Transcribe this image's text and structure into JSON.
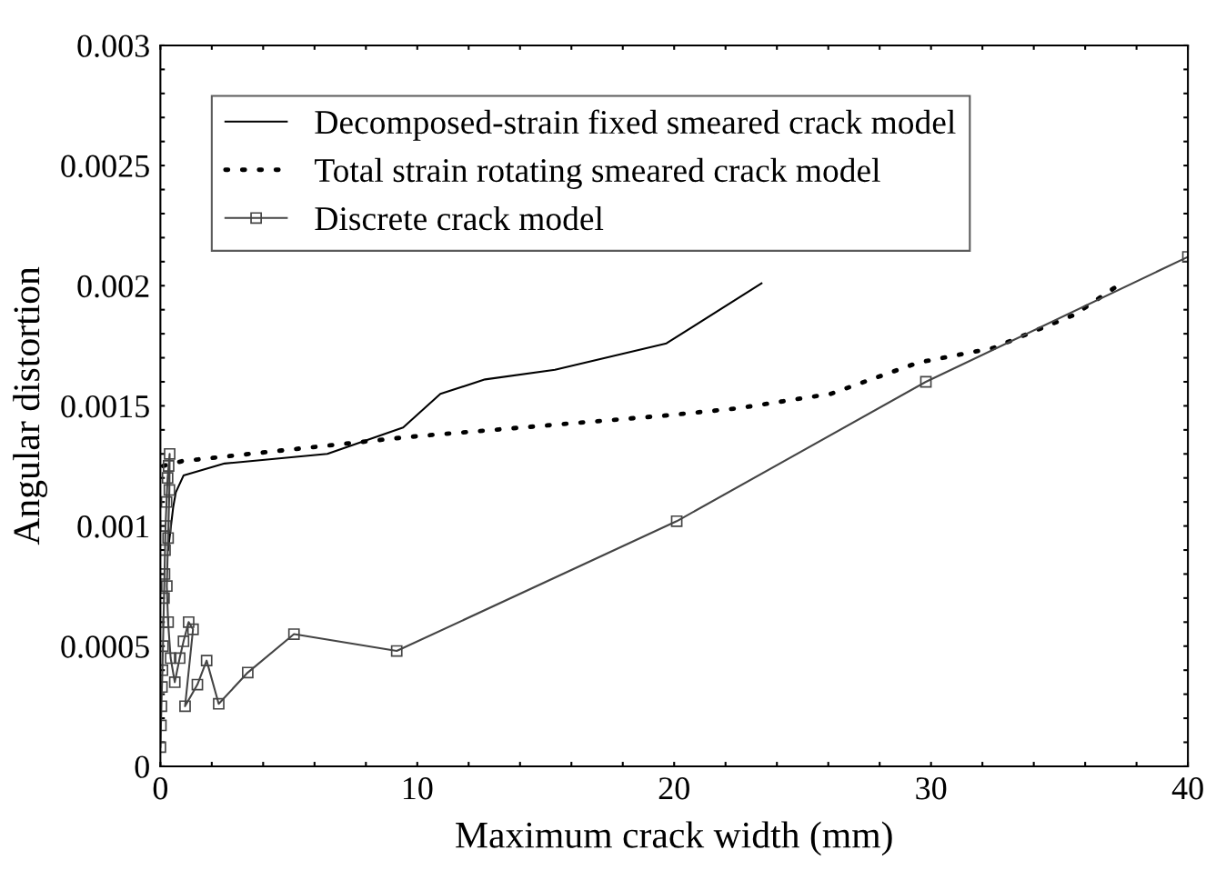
{
  "chart_data": {
    "type": "line",
    "xlabel": "Maximum crack width (mm)",
    "ylabel": "Angular distortion",
    "xlim": [
      0,
      40
    ],
    "ylim": [
      0,
      0.003
    ],
    "xticks": [
      0,
      {
        "value": 2,
        "label": null
      },
      {
        "value": 4,
        "label": null
      },
      {
        "value": 6,
        "label": null
      },
      {
        "value": 8,
        "label": null
      },
      10,
      {
        "value": 12,
        "label": null
      },
      {
        "value": 14,
        "label": null
      },
      {
        "value": 16,
        "label": null
      },
      {
        "value": 18,
        "label": null
      },
      20,
      {
        "value": 22,
        "label": null
      },
      {
        "value": 24,
        "label": null
      },
      {
        "value": 26,
        "label": null
      },
      {
        "value": 28,
        "label": null
      },
      30,
      {
        "value": 32,
        "label": null
      },
      {
        "value": 34,
        "label": null
      },
      {
        "value": 36,
        "label": null
      },
      {
        "value": 38,
        "label": null
      },
      40
    ],
    "yticks": [
      0,
      {
        "value": 0.0001,
        "label": null
      },
      {
        "value": 0.0002,
        "label": null
      },
      {
        "value": 0.0003,
        "label": null
      },
      {
        "value": 0.0004,
        "label": null
      },
      {
        "value": 0.0005,
        "label": "0.0005"
      },
      {
        "value": 0.0006,
        "label": null
      },
      {
        "value": 0.0007,
        "label": null
      },
      {
        "value": 0.0008,
        "label": null
      },
      {
        "value": 0.0009,
        "label": null
      },
      {
        "value": 0.001,
        "label": "0.001"
      },
      {
        "value": 0.0011,
        "label": null
      },
      {
        "value": 0.0012,
        "label": null
      },
      {
        "value": 0.0013,
        "label": null
      },
      {
        "value": 0.0014,
        "label": null
      },
      {
        "value": 0.0015,
        "label": "0.0015"
      },
      {
        "value": 0.0016,
        "label": null
      },
      {
        "value": 0.0017,
        "label": null
      },
      {
        "value": 0.0018,
        "label": null
      },
      {
        "value": 0.0019,
        "label": null
      },
      {
        "value": 0.002,
        "label": "0.002"
      },
      {
        "value": 0.0021,
        "label": null
      },
      {
        "value": 0.0022,
        "label": null
      },
      {
        "value": 0.0023,
        "label": null
      },
      {
        "value": 0.0024,
        "label": null
      },
      {
        "value": 0.0025,
        "label": "0.0025"
      },
      {
        "value": 0.0026,
        "label": null
      },
      {
        "value": 0.0027,
        "label": null
      },
      {
        "value": 0.0028,
        "label": null
      },
      {
        "value": 0.0029,
        "label": null
      },
      {
        "value": 0.003,
        "label": "0.003"
      }
    ],
    "grid": false,
    "legend": "top left",
    "series": [
      {
        "name": "Decomposed-strain fixed smeared crack model",
        "color": "#000000",
        "line_style": "solid",
        "marker": "none",
        "x": [
          0.3,
          0.5,
          0.6,
          0.9,
          2.5,
          6.5,
          9.45,
          10.9,
          12.64,
          15.36,
          19.7,
          23.4
        ],
        "values": [
          0.0009,
          0.00108,
          0.00114,
          0.00121,
          0.00126,
          0.0013,
          0.00141,
          0.00155,
          0.00161,
          0.00165,
          0.00176,
          0.00201
        ]
      },
      {
        "name": "Total strain rotating smeared crack model",
        "color": "#000000",
        "line_style": "dotted",
        "marker": "none",
        "x": [
          0.1,
          0.85,
          9.6,
          19.7,
          22.5,
          26.1,
          29.5,
          32.4,
          35.6,
          37.4
        ],
        "values": [
          0.00125,
          0.00127,
          0.00137,
          0.00146,
          0.00149,
          0.00155,
          0.00168,
          0.00174,
          0.00188,
          0.00201
        ]
      },
      {
        "name": "Discrete crack model",
        "color": "#444444",
        "line_style": "solid",
        "marker": "square",
        "x": [
          0.0,
          0.02,
          0.04,
          0.06,
          0.08,
          0.1,
          0.12,
          0.14,
          0.16,
          0.18,
          0.2,
          0.24,
          0.28,
          0.32,
          0.36,
          0.35,
          0.3,
          0.25,
          0.3,
          0.4,
          0.56,
          0.75,
          0.9,
          1.1,
          1.27,
          0.96,
          1.44,
          1.8,
          2.27,
          3.4,
          5.2,
          9.2,
          20.1,
          29.8,
          40
        ],
        "values": [
          8e-05,
          0.00017,
          0.00025,
          0.00033,
          0.0004,
          0.0005,
          0.0006,
          0.0007,
          0.0008,
          0.0009,
          0.001,
          0.0011,
          0.0012,
          0.00125,
          0.0013,
          0.00115,
          0.00095,
          0.00075,
          0.0006,
          0.00045,
          0.00035,
          0.00045,
          0.00052,
          0.0006,
          0.00057,
          0.00025,
          0.00034,
          0.00044,
          0.00026,
          0.00039,
          0.00055,
          0.00048,
          0.00102,
          0.0016,
          0.00212
        ]
      }
    ]
  }
}
